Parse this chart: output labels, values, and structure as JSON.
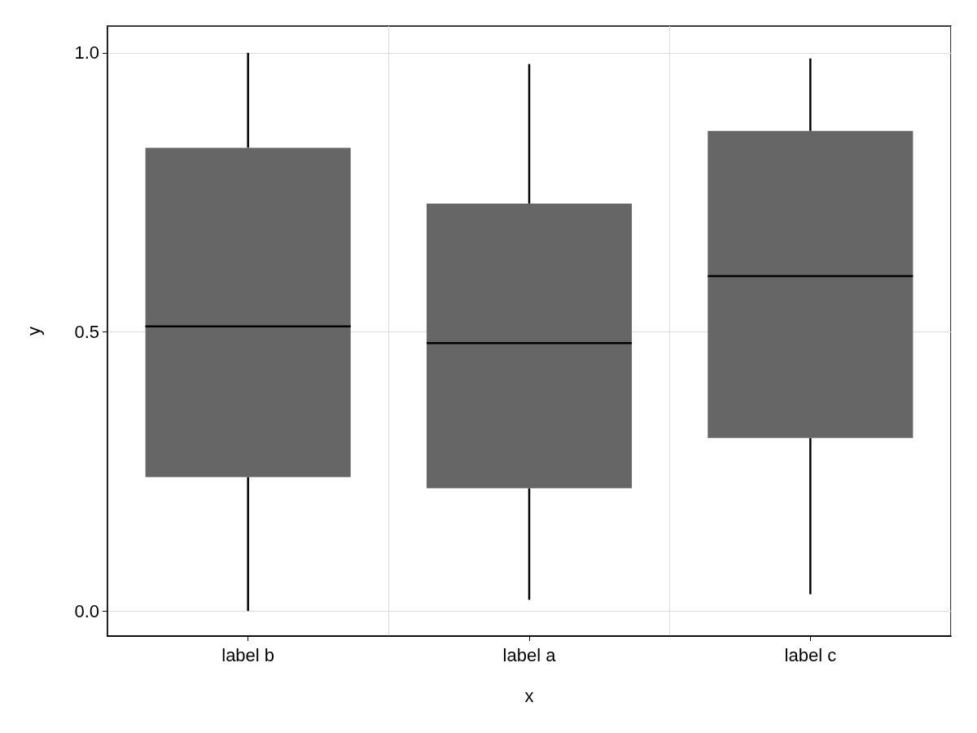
{
  "chart_data": {
    "type": "box",
    "xlabel": "x",
    "ylabel": "y",
    "categories": [
      "label b",
      "label a",
      "label c"
    ],
    "boxes": [
      {
        "low": 0.0,
        "q1": 0.24,
        "median": 0.51,
        "q3": 0.83,
        "high": 1.0
      },
      {
        "low": 0.02,
        "q1": 0.22,
        "median": 0.48,
        "q3": 0.73,
        "high": 0.98
      },
      {
        "low": 0.03,
        "q1": 0.31,
        "median": 0.6,
        "q3": 0.86,
        "high": 0.99
      }
    ],
    "color": "#666666",
    "ylim": [
      -0.045,
      1.048
    ],
    "yticks": [
      {
        "value": 0,
        "label": "0.0"
      },
      {
        "value": 0.5,
        "label": "0.5"
      },
      {
        "value": 1,
        "label": "1.0"
      }
    ],
    "grid": true
  }
}
